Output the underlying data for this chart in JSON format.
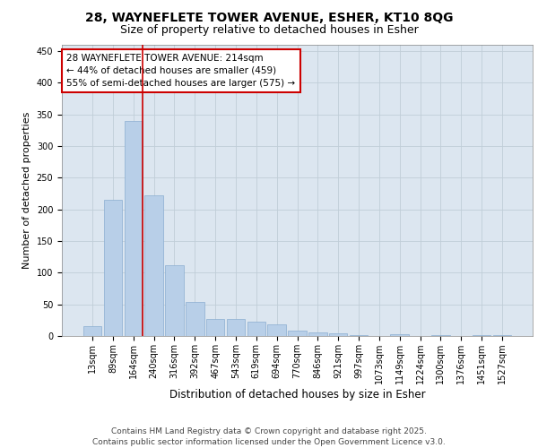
{
  "title_line1": "28, WAYNEFLETE TOWER AVENUE, ESHER, KT10 8QG",
  "title_line2": "Size of property relative to detached houses in Esher",
  "xlabel": "Distribution of detached houses by size in Esher",
  "ylabel": "Number of detached properties",
  "categories": [
    "13sqm",
    "89sqm",
    "164sqm",
    "240sqm",
    "316sqm",
    "392sqm",
    "467sqm",
    "543sqm",
    "619sqm",
    "694sqm",
    "770sqm",
    "846sqm",
    "921sqm",
    "997sqm",
    "1073sqm",
    "1149sqm",
    "1224sqm",
    "1300sqm",
    "1376sqm",
    "1451sqm",
    "1527sqm"
  ],
  "values": [
    15,
    215,
    340,
    222,
    112,
    54,
    27,
    27,
    22,
    18,
    9,
    6,
    4,
    1,
    0,
    3,
    0,
    1,
    0,
    2,
    1
  ],
  "bar_color": "#b8cfe8",
  "bar_edge_color": "#8aadd0",
  "property_line_index": 2,
  "property_line_color": "#cc0000",
  "annotation_text": "28 WAYNEFLETE TOWER AVENUE: 214sqm\n← 44% of detached houses are smaller (459)\n55% of semi-detached houses are larger (575) →",
  "annotation_box_color": "#ffffff",
  "annotation_box_edge": "#cc0000",
  "ylim": [
    0,
    460
  ],
  "yticks": [
    0,
    50,
    100,
    150,
    200,
    250,
    300,
    350,
    400,
    450
  ],
  "background_color": "#dce6f0",
  "footer_text": "Contains HM Land Registry data © Crown copyright and database right 2025.\nContains public sector information licensed under the Open Government Licence v3.0.",
  "title_fontsize": 10,
  "subtitle_fontsize": 9,
  "xlabel_fontsize": 8.5,
  "ylabel_fontsize": 8,
  "tick_fontsize": 7,
  "annotation_fontsize": 7.5,
  "footer_fontsize": 6.5
}
